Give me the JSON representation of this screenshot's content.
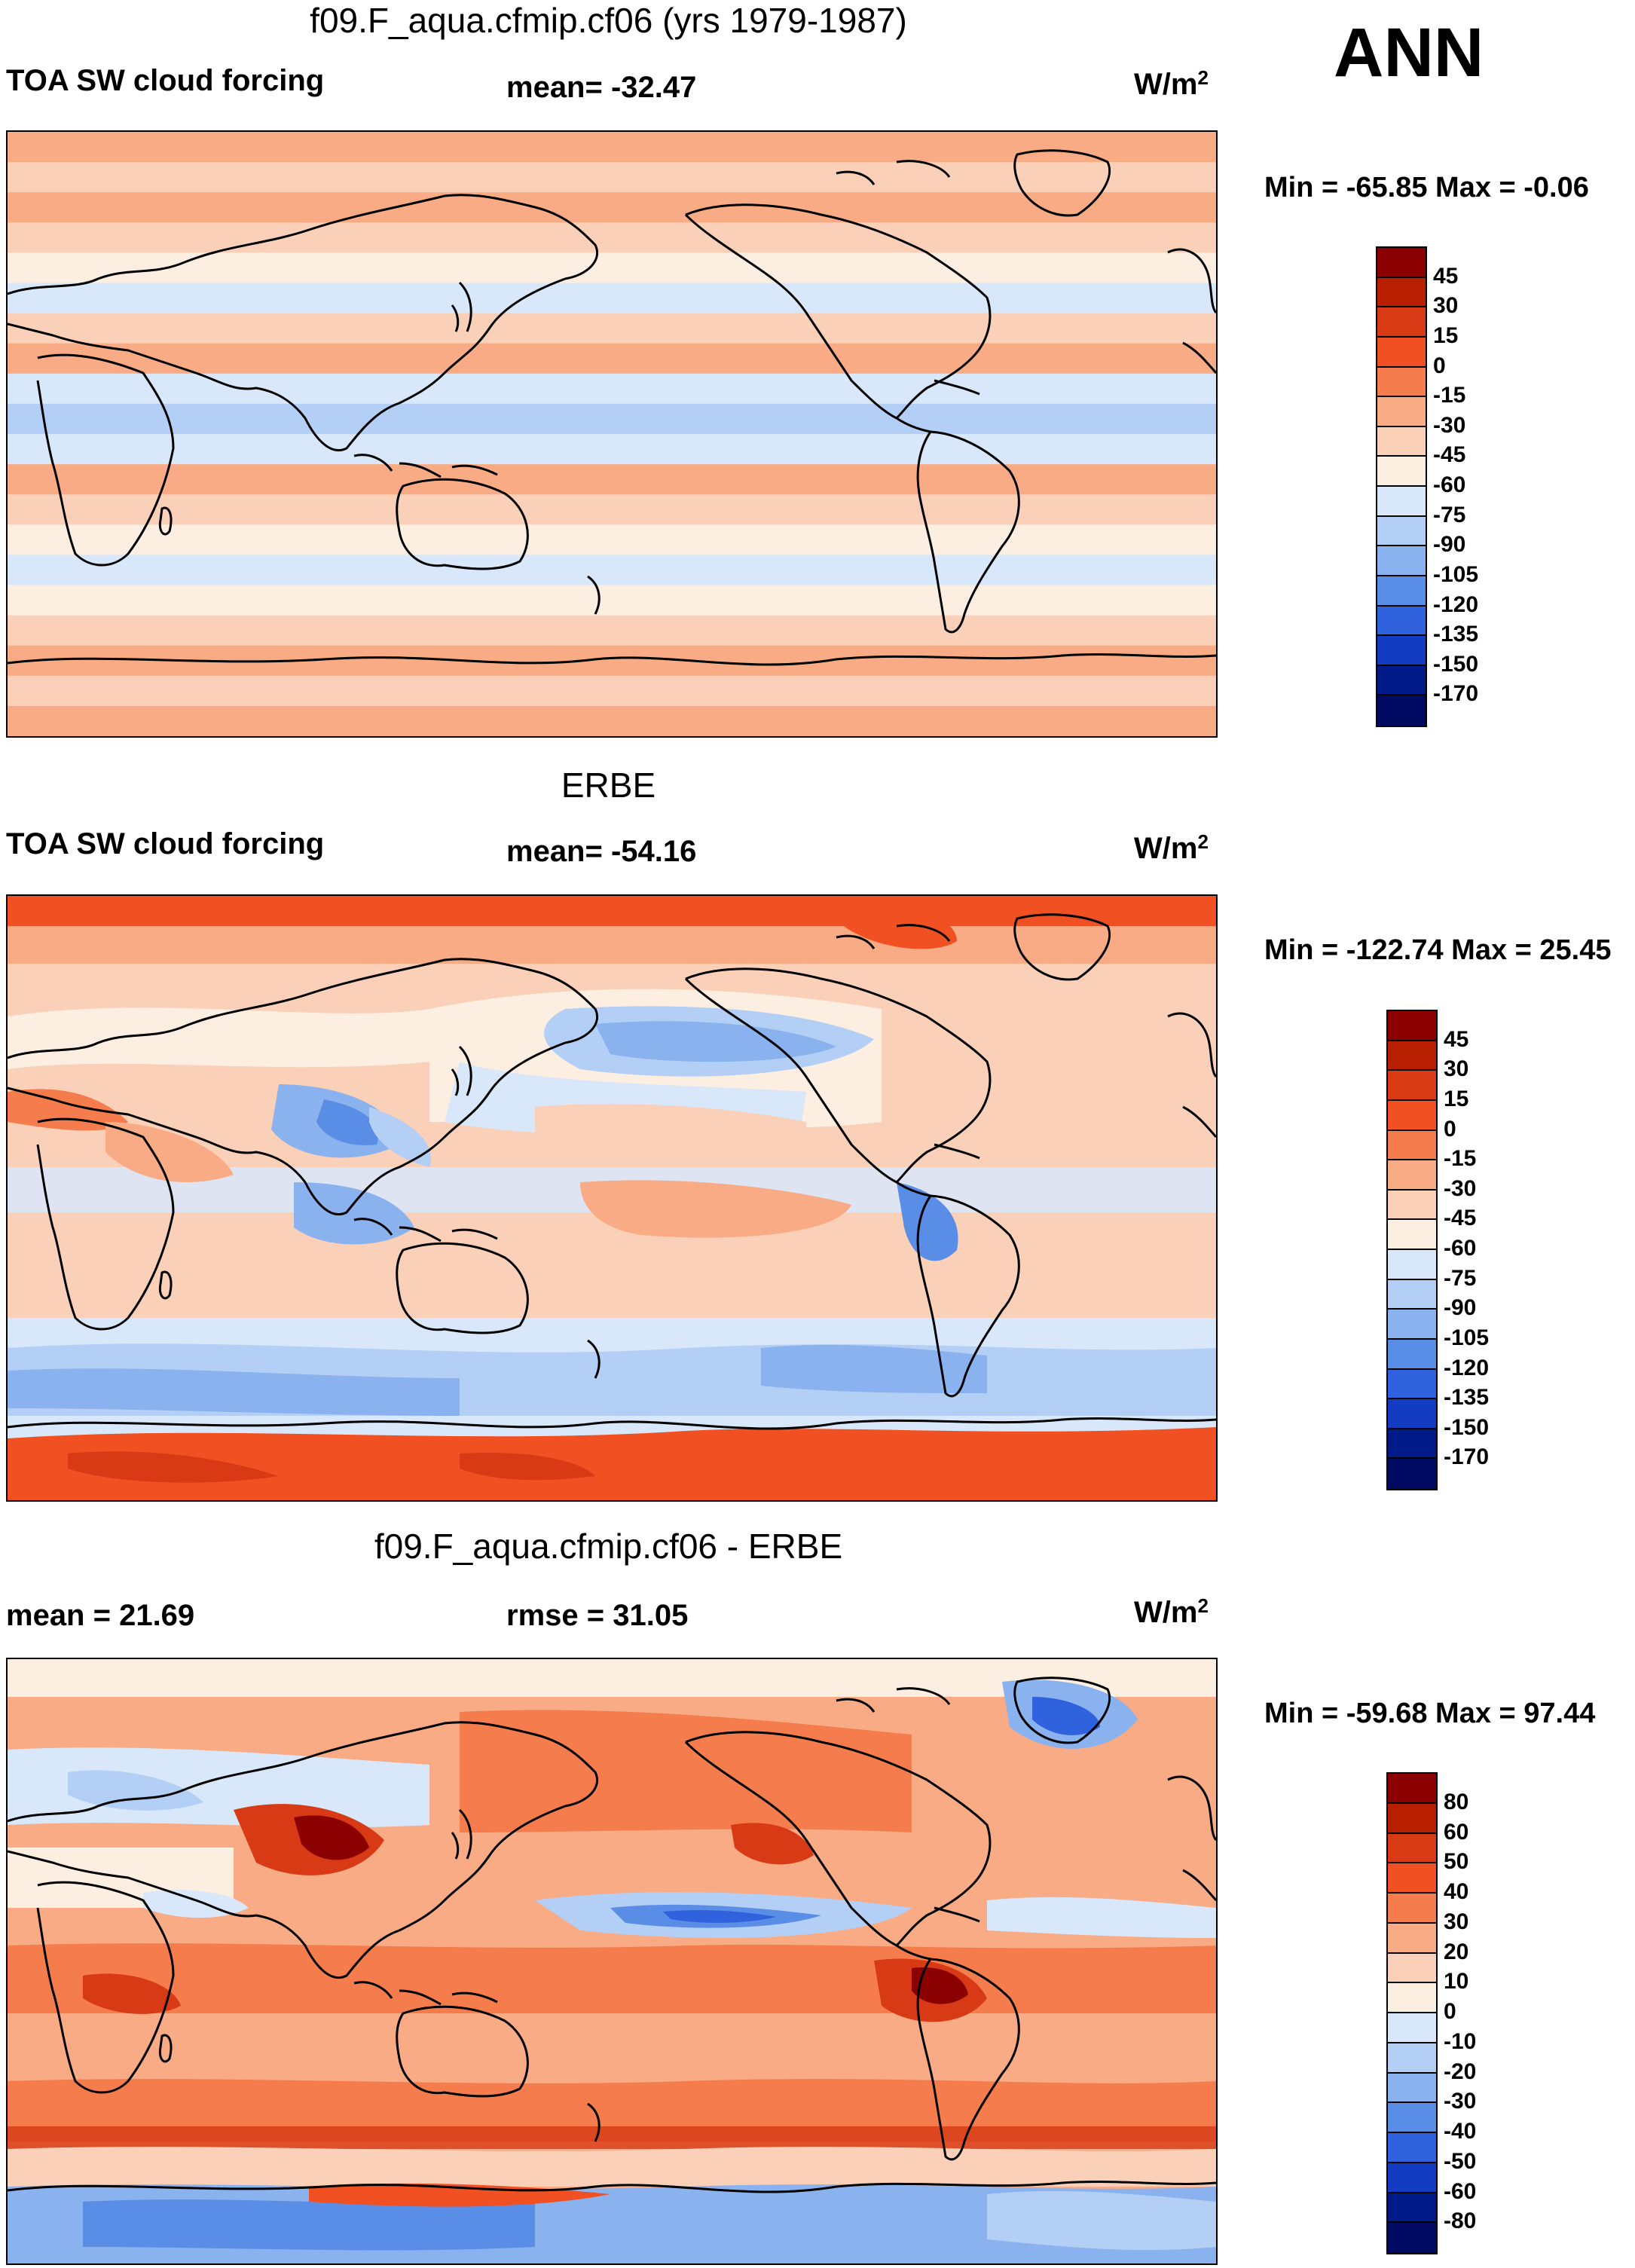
{
  "season": "ANN",
  "panels": [
    {
      "title": "f09.F_aqua.cfmip.cf06 (yrs 1979-1987)",
      "left_label": "TOA SW cloud forcing",
      "stat_label": "mean= -32.47",
      "units": "W/m",
      "units_sup": "2",
      "minmax": "Min = -65.85 Max =  -0.06",
      "colorbar_ticks": [
        "45",
        "30",
        "15",
        "0",
        "-15",
        "-30",
        "-45",
        "-60",
        "-75",
        "-90",
        "-105",
        "-120",
        "-135",
        "-150",
        "-170"
      ],
      "colorbar_colors": [
        "#8b0000",
        "#b81f00",
        "#d73a14",
        "#f05022",
        "#f57d4d",
        "#f8ab85",
        "#fbd0b8",
        "#fdeee2",
        "#d8e8fa",
        "#b3cff5",
        "#8ab2ef",
        "#5a8de6",
        "#2f62dc",
        "#143cc2",
        "#001a8a",
        "#000a60"
      ]
    },
    {
      "title": "ERBE",
      "left_label": "TOA SW cloud forcing",
      "stat_label": "mean= -54.16",
      "units": "W/m",
      "units_sup": "2",
      "minmax": "Min = -122.74 Max =  25.45",
      "colorbar_ticks": [
        "45",
        "30",
        "15",
        "0",
        "-15",
        "-30",
        "-45",
        "-60",
        "-75",
        "-90",
        "-105",
        "-120",
        "-135",
        "-150",
        "-170"
      ],
      "colorbar_colors": [
        "#8b0000",
        "#b81f00",
        "#d73a14",
        "#f05022",
        "#f57d4d",
        "#f8ab85",
        "#fbd0b8",
        "#fdeee2",
        "#d8e8fa",
        "#b3cff5",
        "#8ab2ef",
        "#5a8de6",
        "#2f62dc",
        "#143cc2",
        "#001a8a",
        "#000a60"
      ]
    },
    {
      "title": "f09.F_aqua.cfmip.cf06 - ERBE",
      "left_label": "mean =  21.69",
      "stat_label": "rmse =  31.05",
      "units": "W/m",
      "units_sup": "2",
      "minmax": "Min = -59.68 Max =  97.44",
      "colorbar_ticks": [
        "80",
        "60",
        "50",
        "40",
        "30",
        "20",
        "10",
        "0",
        "-10",
        "-20",
        "-30",
        "-40",
        "-50",
        "-60",
        "-80"
      ],
      "colorbar_colors": [
        "#8b0000",
        "#b81f00",
        "#d73a14",
        "#f05022",
        "#f57d4d",
        "#f8ab85",
        "#fbd0b8",
        "#fdeee2",
        "#d8e8fa",
        "#b3cff5",
        "#8ab2ef",
        "#5a8de6",
        "#2f62dc",
        "#143cc2",
        "#001a8a",
        "#000a60"
      ]
    }
  ],
  "chart_data": [
    {
      "type": "heatmap",
      "title": "f09.F_aqua.cfmip.cf06 (yrs 1979-1987)",
      "variable": "TOA SW cloud forcing",
      "units": "W/m2",
      "mean": -32.47,
      "min": -65.85,
      "max": -0.06,
      "levels": [
        45,
        30,
        15,
        0,
        -15,
        -30,
        -45,
        -60,
        -75,
        -90,
        -105,
        -120,
        -135,
        -150,
        -170
      ],
      "zonal_band_levels_north_to_south": [
        -15,
        -30,
        -15,
        -30,
        -45,
        -60,
        -30,
        -15,
        -60,
        -75,
        -60,
        -15,
        -30,
        -45,
        -60,
        -45,
        -30,
        -15,
        -30,
        -15
      ]
    },
    {
      "type": "heatmap",
      "title": "ERBE",
      "variable": "TOA SW cloud forcing",
      "units": "W/m2",
      "mean": -54.16,
      "min": -122.74,
      "max": 25.45,
      "levels": [
        45,
        30,
        15,
        0,
        -15,
        -30,
        -45,
        -60,
        -75,
        -90,
        -105,
        -120,
        -135,
        -150,
        -170
      ]
    },
    {
      "type": "heatmap",
      "title": "f09.F_aqua.cfmip.cf06 - ERBE",
      "units": "W/m2",
      "mean": 21.69,
      "rmse": 31.05,
      "min": -59.68,
      "max": 97.44,
      "levels": [
        80,
        60,
        50,
        40,
        30,
        20,
        10,
        0,
        -10,
        -20,
        -30,
        -40,
        -50,
        -60,
        -80
      ]
    }
  ]
}
